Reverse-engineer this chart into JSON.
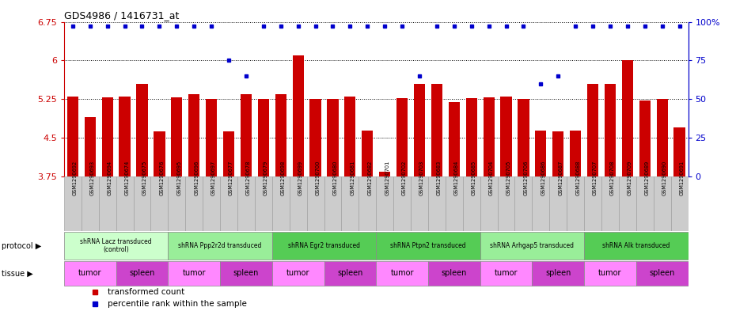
{
  "title": "GDS4986 / 1416731_at",
  "samples": [
    "GSM1290692",
    "GSM1290693",
    "GSM1290694",
    "GSM1290674",
    "GSM1290675",
    "GSM1290676",
    "GSM1290695",
    "GSM1290696",
    "GSM1290697",
    "GSM1290677",
    "GSM1290678",
    "GSM1290679",
    "GSM1290698",
    "GSM1290699",
    "GSM1290700",
    "GSM1290680",
    "GSM1290681",
    "GSM1290682",
    "GSM1290701",
    "GSM1290702",
    "GSM1290703",
    "GSM1290683",
    "GSM1290684",
    "GSM1290685",
    "GSM1290704",
    "GSM1290705",
    "GSM1290706",
    "GSM1290686",
    "GSM1290687",
    "GSM1290688",
    "GSM1290707",
    "GSM1290708",
    "GSM1290709",
    "GSM1290689",
    "GSM1290690",
    "GSM1290691"
  ],
  "bar_values": [
    5.3,
    4.9,
    5.28,
    5.3,
    5.55,
    4.62,
    5.28,
    5.35,
    5.25,
    4.62,
    5.35,
    5.25,
    5.35,
    6.1,
    5.25,
    5.25,
    5.3,
    4.65,
    3.85,
    5.27,
    5.55,
    5.55,
    5.2,
    5.27,
    5.28,
    5.3,
    5.25,
    4.65,
    4.62,
    4.65,
    5.55,
    5.55,
    6.0,
    5.22,
    5.25,
    4.7
  ],
  "percentile_values": [
    97,
    97,
    97,
    97,
    97,
    97,
    97,
    97,
    97,
    75,
    65,
    97,
    97,
    97,
    97,
    97,
    97,
    97,
    97,
    97,
    65,
    97,
    97,
    97,
    97,
    97,
    97,
    60,
    65,
    97,
    97,
    97,
    97,
    97,
    97,
    97
  ],
  "ymin": 3.75,
  "ymax": 6.75,
  "yticks": [
    3.75,
    4.5,
    5.25,
    6.0,
    6.75
  ],
  "ytick_labels": [
    "3.75",
    "4.5",
    "5.25",
    "6",
    "6.75"
  ],
  "right_yticks": [
    0,
    25,
    50,
    75,
    100
  ],
  "right_ytick_labels": [
    "0",
    "25",
    "50",
    "75",
    "100%"
  ],
  "bar_color": "#cc0000",
  "dot_color": "#0000cc",
  "protocols": [
    {
      "label": "shRNA Lacz transduced\n(control)",
      "start": 0,
      "end": 6,
      "color": "#ccffcc"
    },
    {
      "label": "shRNA Ppp2r2d transduced",
      "start": 6,
      "end": 12,
      "color": "#99ee99"
    },
    {
      "label": "shRNA Egr2 transduced",
      "start": 12,
      "end": 18,
      "color": "#55cc55"
    },
    {
      "label": "shRNA Ptpn2 transduced",
      "start": 18,
      "end": 24,
      "color": "#55cc55"
    },
    {
      "label": "shRNA Arhgap5 transduced",
      "start": 24,
      "end": 30,
      "color": "#99ee99"
    },
    {
      "label": "shRNA Alk transduced",
      "start": 30,
      "end": 36,
      "color": "#55cc55"
    }
  ],
  "tissues": [
    {
      "label": "tumor",
      "start": 0,
      "end": 3
    },
    {
      "label": "spleen",
      "start": 3,
      "end": 6
    },
    {
      "label": "tumor",
      "start": 6,
      "end": 9
    },
    {
      "label": "spleen",
      "start": 9,
      "end": 12
    },
    {
      "label": "tumor",
      "start": 12,
      "end": 15
    },
    {
      "label": "spleen",
      "start": 15,
      "end": 18
    },
    {
      "label": "tumor",
      "start": 18,
      "end": 21
    },
    {
      "label": "spleen",
      "start": 21,
      "end": 24
    },
    {
      "label": "tumor",
      "start": 24,
      "end": 27
    },
    {
      "label": "spleen",
      "start": 27,
      "end": 30
    },
    {
      "label": "tumor",
      "start": 30,
      "end": 33
    },
    {
      "label": "spleen",
      "start": 33,
      "end": 36
    }
  ],
  "tumor_color": "#ff88ff",
  "spleen_color": "#cc44cc",
  "tick_box_color": "#cccccc",
  "bg_color": "#ffffff",
  "left_axis_color": "#cc0000",
  "right_axis_color": "#0000cc"
}
